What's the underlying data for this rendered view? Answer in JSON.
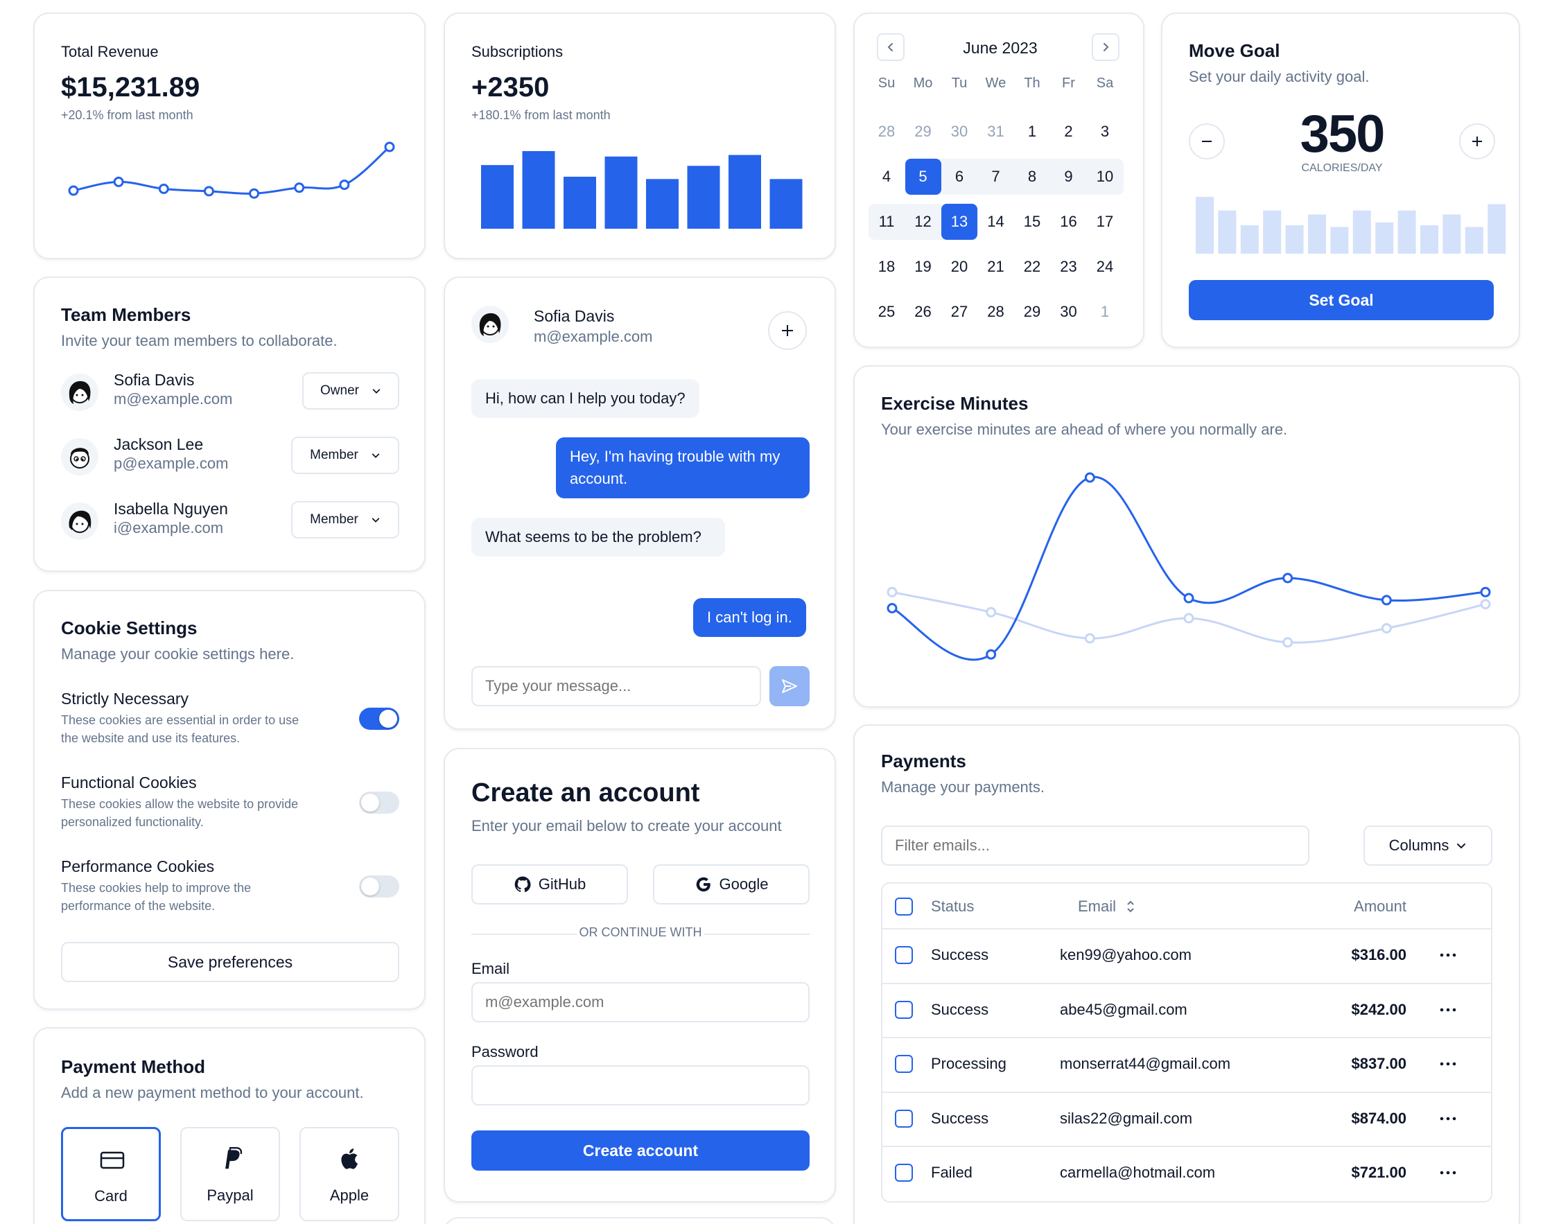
{
  "revenue": {
    "title": "Total Revenue",
    "value": "$15,231.89",
    "change": "+20.1% from last month",
    "chart_data": {
      "type": "line",
      "values": [
        0.25,
        0.4,
        0.28,
        0.24,
        0.2,
        0.3,
        0.35,
        1.0
      ]
    }
  },
  "subscriptions": {
    "title": "Subscriptions",
    "value": "+2350",
    "change": "+180.1% from last month",
    "chart_data": {
      "type": "bar",
      "values": [
        0.82,
        1.0,
        0.67,
        0.93,
        0.64,
        0.81,
        0.95,
        0.64
      ]
    }
  },
  "calendar": {
    "month": "June 2023",
    "weekdays": [
      "Su",
      "Mo",
      "Tu",
      "We",
      "Th",
      "Fr",
      "Sa"
    ],
    "weeks": [
      [
        "28",
        "29",
        "30",
        "31",
        "1",
        "2",
        "3"
      ],
      [
        "4",
        "5",
        "6",
        "7",
        "8",
        "9",
        "10"
      ],
      [
        "11",
        "12",
        "13",
        "14",
        "15",
        "16",
        "17"
      ],
      [
        "18",
        "19",
        "20",
        "21",
        "22",
        "23",
        "24"
      ],
      [
        "25",
        "26",
        "27",
        "28",
        "29",
        "30",
        "1"
      ]
    ],
    "outside": [
      "0-0",
      "0-1",
      "0-2",
      "0-3",
      "4-6"
    ],
    "selected": [
      "1-1",
      "2-2"
    ],
    "range": [
      "1-1",
      "1-2",
      "1-3",
      "1-4",
      "1-5",
      "1-6",
      "2-0",
      "2-1",
      "2-2"
    ]
  },
  "goal": {
    "title": "Move Goal",
    "subtitle": "Set your daily activity goal.",
    "value": "350",
    "unit": "CALORIES/DAY",
    "button": "Set Goal",
    "chart_data": {
      "type": "bar",
      "values": [
        1.0,
        0.76,
        0.5,
        0.76,
        0.5,
        0.69,
        0.47,
        0.76,
        0.55,
        0.76,
        0.5,
        0.69,
        0.47,
        0.87
      ]
    }
  },
  "team": {
    "title": "Team Members",
    "subtitle": "Invite your team members to collaborate.",
    "members": [
      {
        "name": "Sofia Davis",
        "email": "m@example.com",
        "role": "Owner"
      },
      {
        "name": "Jackson Lee",
        "email": "p@example.com",
        "role": "Member"
      },
      {
        "name": "Isabella Nguyen",
        "email": "i@example.com",
        "role": "Member"
      }
    ]
  },
  "chat": {
    "name": "Sofia Davis",
    "email": "m@example.com",
    "messages": [
      {
        "from": "them",
        "text": "Hi, how can I help you today?"
      },
      {
        "from": "me",
        "text": "Hey, I'm having trouble with my account."
      },
      {
        "from": "them",
        "text": "What seems to be the problem?"
      },
      {
        "from": "me",
        "text": "I can't log in."
      }
    ],
    "placeholder": "Type your message..."
  },
  "exercise": {
    "title": "Exercise Minutes",
    "subtitle": "Your exercise minutes are ahead of where you normally are.",
    "chart_data": {
      "type": "line",
      "series": [
        {
          "values": [
            0.35,
            0.12,
            1.0,
            0.4,
            0.5,
            0.39,
            0.43
          ]
        },
        {
          "values": [
            0.43,
            0.33,
            0.2,
            0.3,
            0.18,
            0.25,
            0.37
          ]
        }
      ]
    }
  },
  "cookies": {
    "title": "Cookie Settings",
    "subtitle": "Manage your cookie settings here.",
    "items": [
      {
        "title": "Strictly Necessary",
        "desc1": "These cookies are essential in order to use",
        "desc2": "the website and use its features.",
        "on": true
      },
      {
        "title": "Functional Cookies",
        "desc1": "These cookies allow the website to provide",
        "desc2": "personalized functionality.",
        "on": false
      },
      {
        "title": "Performance Cookies",
        "desc1": "These cookies help to improve the",
        "desc2": "performance of the website.",
        "on": false
      }
    ],
    "button": "Save preferences"
  },
  "account": {
    "title": "Create an account",
    "subtitle": "Enter your email below to create your account",
    "github": "GitHub",
    "google": "Google",
    "divider": "OR CONTINUE WITH",
    "email_label": "Email",
    "email_placeholder": "m@example.com",
    "password_label": "Password",
    "button": "Create account"
  },
  "payments": {
    "title": "Payments",
    "subtitle": "Manage your payments.",
    "filter_placeholder": "Filter emails...",
    "columns_button": "Columns",
    "headers": {
      "status": "Status",
      "email": "Email",
      "amount": "Amount"
    },
    "rows": [
      {
        "status": "Success",
        "email": "ken99@yahoo.com",
        "amount": "$316.00"
      },
      {
        "status": "Success",
        "email": "abe45@gmail.com",
        "amount": "$242.00"
      },
      {
        "status": "Processing",
        "email": "monserrat44@gmail.com",
        "amount": "$837.00"
      },
      {
        "status": "Success",
        "email": "silas22@gmail.com",
        "amount": "$874.00"
      },
      {
        "status": "Failed",
        "email": "carmella@hotmail.com",
        "amount": "$721.00"
      }
    ]
  },
  "payment_method": {
    "title": "Payment Method",
    "subtitle": "Add a new payment method to your account.",
    "options": [
      "Card",
      "Paypal",
      "Apple"
    ]
  },
  "colors": {
    "primary": "#2563eb",
    "light_bar": "#d4e1fb",
    "muted": "#64748b",
    "border": "#e6e9ef"
  }
}
